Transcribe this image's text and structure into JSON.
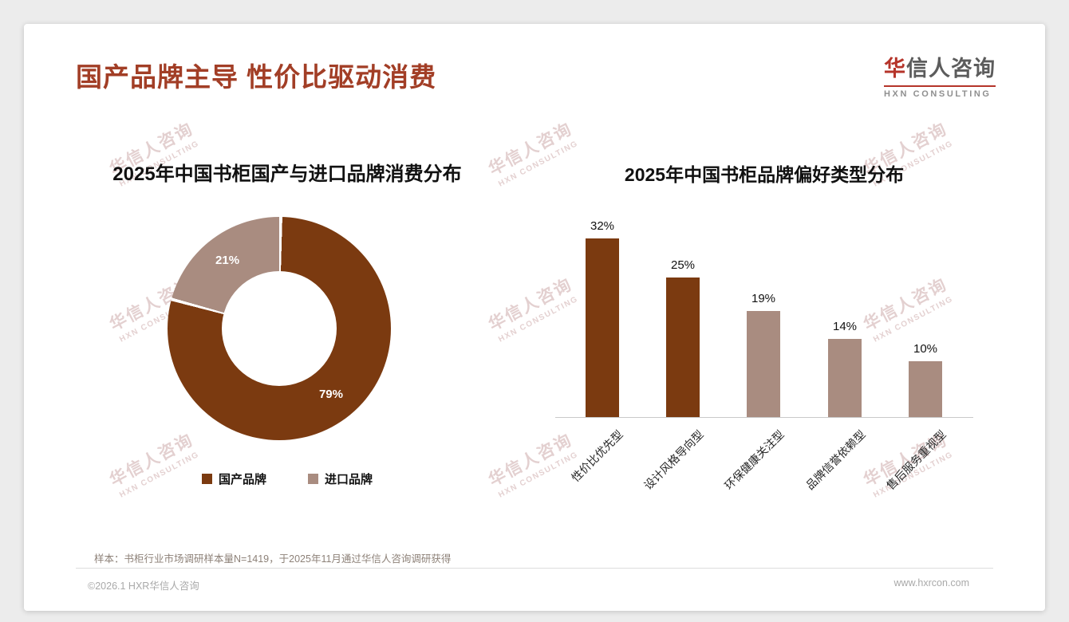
{
  "header": {
    "title": "国产品牌主导 性价比驱动消费",
    "logo": {
      "cn_first": "华",
      "cn_rest": "信人咨询",
      "en": "HXN CONSULTING"
    }
  },
  "watermark": {
    "line1": "华信人咨询",
    "line2": "HXN CONSULTING"
  },
  "chart_data": [
    {
      "type": "pie",
      "donut": true,
      "title": "2025年中国书柜国产与进口品牌消费分布",
      "legend_position": "bottom",
      "slices": [
        {
          "label": "国产品牌",
          "value": 79,
          "data_label": "79%",
          "color": "#7b3a10"
        },
        {
          "label": "进口品牌",
          "value": 21,
          "data_label": "21%",
          "color": "#a98c80"
        }
      ]
    },
    {
      "type": "bar",
      "title": "2025年中国书柜品牌偏好类型分布",
      "categories": [
        "性价比优先型",
        "设计风格导向型",
        "环保健康关注型",
        "品牌信誉依赖型",
        "售后服务重视型"
      ],
      "values": [
        32,
        25,
        19,
        14,
        10
      ],
      "data_labels": [
        "32%",
        "25%",
        "19%",
        "14%",
        "10%"
      ],
      "bar_colors": [
        "#7b3a10",
        "#7b3a10",
        "#a98c80",
        "#a98c80",
        "#a98c80"
      ],
      "xlabel": "",
      "ylabel": "",
      "ylim": [
        0,
        35
      ],
      "grid": false
    }
  ],
  "footnote": "样本：书柜行业市场调研样本量N=1419，于2025年11月通过华信人咨询调研获得",
  "footer": {
    "copyright": "©2026.1 HXR华信人咨询",
    "website": "www.hxrcon.com"
  },
  "colors": {
    "title": "#a23e26",
    "accent_dark": "#7b3a10",
    "accent_light": "#a98c80",
    "logo_red": "#b5342a"
  }
}
